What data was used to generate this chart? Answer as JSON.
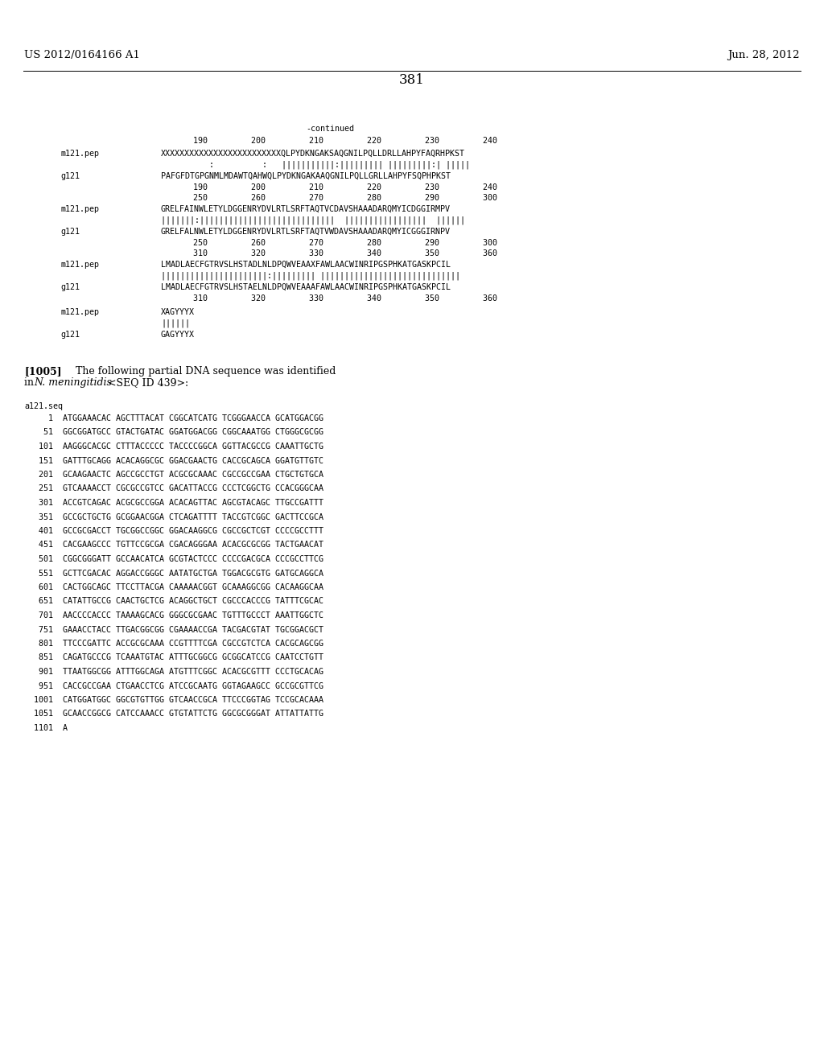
{
  "header_left": "US 2012/0164166 A1",
  "header_right": "Jun. 28, 2012",
  "page_number": "381",
  "background_color": "#ffffff",
  "text_color": "#000000",
  "font_size_header": 9.5,
  "font_size_page": 12,
  "font_size_mono": 7.2,
  "font_size_para": 9.0,
  "continued_label": "-continued",
  "ruler1": "190         200         210         220         230         240",
  "m121_seq1": "XXXXXXXXXXXXXXXXXXXXXXXXXQLPYDKNGAKSAQGNILPQLLDRLLAHPYFAQRHPKST",
  "match1": "          :          :   |||||||||||:||||||||| |||||||||:| |||||",
  "g121_seq1": "PAFGFDTGPGNMLMDAWTQAHWQLPYDKNGAKAAQGNILPQLLGRLLAHPYFSQPHPKST",
  "ruler1b": "190         200         210         220         230         240",
  "ruler2": "250         260         270         280         290         300",
  "m121_seq2": "GRELFAINWLETYLDGGENRYDVLRTLSRFTAQTVCDAVSHAAADARQMYICDGGIRMPV",
  "match2": "|||||||:||||||||||||||||||||||||||||  |||||||||||||||||  ||||||",
  "g121_seq2": "GRELFALNWLETYLDGGENRYDVLRTLSRFTAQTVWDAVSHAAADARQMYICGGGIRNPV",
  "ruler2b": "250         260         270         280         290         300",
  "ruler3": "310         320         330         340         350         360",
  "m121_seq3": "LMADLAECFGTRVSLHSTADLNLDPQWVEAAXFAWLAACWINRIPGSPHKATGASKPCIL",
  "match3": "||||||||||||||||||||||:||||||||| |||||||||||||||||||||||||||||",
  "g121_seq3": "LMADLAECFGTRVSLHSTAELNLDPQWVEAAAFAWLAACWINRIPGSPHKATGASKPCIL",
  "ruler3b": "310         320         330         340         350         360",
  "m121_seq4": "XAGYYYX",
  "match4": "||||||",
  "g121_seq4": "GAGYYYX",
  "para_tag": "[1005]",
  "para_text1": "   The following partial DNA sequence was identified",
  "para_text2_a": "in ",
  "para_text2_b": "N. meningitidis",
  "para_text2_c": " <SEQ ID 439>:",
  "seq_label": "a121.seq",
  "dna_lines": [
    "     1  ATGGAAACAC AGCTTTACAT CGGCATCATG TCGGGAACCA GCATGGACGG",
    "    51  GGCGGATGCC GTACTGATAC GGATGGACGG CGGCAAATGG CTGGGCGCGG",
    "   101  AAGGGCACGC CTTTACCCCC TACCCCGGCA GGTTACGCCG CAAATTGCTG",
    "   151  GATTTGCAGG ACACAGGCGC GGACGAACTG CACCGCAGCA GGATGTTGTC",
    "   201  GCAAGAACTC AGCCGCCTGT ACGCGCAAAC CGCCGCCGAA CTGCTGTGCA",
    "   251  GTCAAAACCT CGCGCCGTCC GACATTACCG CCCTCGGCTG CCACGGGCAA",
    "   301  ACCGTCAGAC ACGCGCCGGA ACACAGTTAC AGCGTACAGC TTGCCGATTT",
    "   351  GCCGCTGCTG GCGGAACGGA CTCAGATTTT TACCGTCGGC GACTTCCGCA",
    "   401  GCCGCGACCT TGCGGCCGGC GGACAAGGCG CGCCGCTCGT CCCCGCCTTT",
    "   451  CACGAAGCCC TGTTCCGCGA CGACAGGGAA ACACGCGCGG TACTGAACAT",
    "   501  CGGCGGGATT GCCAACATCA GCGTACTCCC CCCCGACGCA CCCGCCTTCG",
    "   551  GCTTCGACAC AGGACCGGGC AATATGCTGA TGGACGCGTG GATGCAGGCA",
    "   601  CACTGGCAGC TTCCTTACGA CAAAAACGGT GCAAAGGCGG CACAAGGCAA",
    "   651  CATATTGCCG CAACTGCTCG ACAGGCTGCT CGCCCACCCG TATTTCGCAC",
    "   701  AACCCCACCC TAAAAGCACG GGGCGCGAAC TGTTTGCCCT AAATTGGCTC",
    "   751  GAAACCTACC TTGACGGCGG CGAAAACCGA TACGACGTAT TGCGGACGCT",
    "   801  TTCCCGATTC ACCGCGCAAA CCGTTTTCGA CGCCGTCTCA CACGCAGCGG",
    "   851  CAGATGCCCG TCAAATGTAC ATTTGCGGCG GCGGCATCCG CAATCCTGTT",
    "   901  TTAATGGCGG ATTTGGCAGA ATGTTTCGGC ACACGCGTTT CCCTGCACAG",
    "   951  CACCGCCGAA CTGAACCTCG ATCCGCAATG GGTAGAAGCC GCCGCGTTCG",
    "  1001  CATGGATGGC GGCGTGTTGG GTCAACCGCA TTCCCGGTAG TCCGCACAAA",
    "  1051  GCAACCGGCG CATCCAAACC GTGTATTCTG GGCGCGGGAT ATTATTATTG",
    "  1101  A"
  ]
}
